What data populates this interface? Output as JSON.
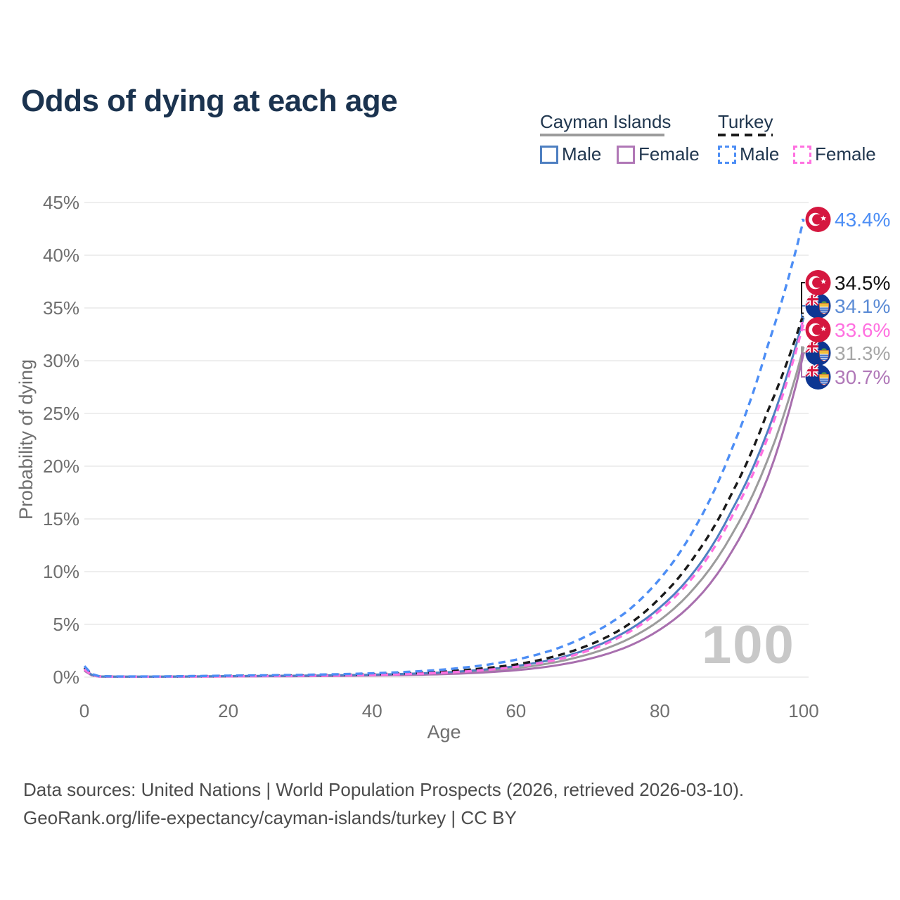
{
  "title": "Odds of dying at each age",
  "legend": {
    "groups": [
      {
        "name": "Cayman Islands",
        "line_style": "solid",
        "underline_color": "#9c9c9c",
        "items": [
          {
            "label": "Male",
            "color": "#4e7fc1",
            "dashed": false
          },
          {
            "label": "Female",
            "color": "#b077b6",
            "dashed": false
          }
        ]
      },
      {
        "name": "Turkey",
        "line_style": "dashed",
        "underline_color": "#1a1a1a",
        "items": [
          {
            "label": "Male",
            "color": "#4d8ef5",
            "dashed": true
          },
          {
            "label": "Female",
            "color": "#ff70e0",
            "dashed": true
          }
        ]
      }
    ]
  },
  "watermark": "100",
  "footer": {
    "line1": "Data sources: United Nations | World Population Prospects (2026, retrieved 2026-03-10).",
    "line2": "GeoRank.org/life-expectancy/cayman-islands/turkey | CC BY"
  },
  "chart_data": {
    "type": "line",
    "title": "Odds of dying at each age",
    "xlabel": "Age",
    "ylabel": "Probability of dying",
    "xlim": [
      0,
      100
    ],
    "ylim": [
      0,
      45
    ],
    "x_ticks": [
      0,
      20,
      40,
      60,
      80,
      100
    ],
    "y_ticks": [
      0,
      5,
      10,
      15,
      20,
      25,
      30,
      35,
      40,
      45
    ],
    "y_tick_suffix": "%",
    "grid": true,
    "legend_position": "top-right",
    "series": [
      {
        "id": "cayman-both",
        "country": "Cayman Islands",
        "sex": "Both",
        "color": "#9c9c9c",
        "dashed": false,
        "end_value": 31.3,
        "end_label": "31.3%",
        "label_color": "#a6a6a6",
        "flag": "cayman",
        "points": [
          [
            0,
            0.7
          ],
          [
            2,
            0.06
          ],
          [
            5,
            0.04
          ],
          [
            10,
            0.04
          ],
          [
            15,
            0.06
          ],
          [
            20,
            0.08
          ],
          [
            25,
            0.1
          ],
          [
            30,
            0.12
          ],
          [
            35,
            0.15
          ],
          [
            40,
            0.19
          ],
          [
            45,
            0.26
          ],
          [
            50,
            0.36
          ],
          [
            55,
            0.55
          ],
          [
            60,
            0.85
          ],
          [
            65,
            1.35
          ],
          [
            70,
            2.15
          ],
          [
            75,
            3.4
          ],
          [
            80,
            5.4
          ],
          [
            85,
            8.6
          ],
          [
            90,
            13.5
          ],
          [
            95,
            20.6
          ],
          [
            100,
            31.3
          ]
        ]
      },
      {
        "id": "cayman-female",
        "country": "Cayman Islands",
        "sex": "Female",
        "color": "#a86fae",
        "dashed": false,
        "end_value": 30.7,
        "end_label": "30.7%",
        "label_color": "#b078b8",
        "flag": "cayman",
        "points": [
          [
            0,
            0.6
          ],
          [
            2,
            0.05
          ],
          [
            5,
            0.03
          ],
          [
            10,
            0.03
          ],
          [
            15,
            0.05
          ],
          [
            20,
            0.06
          ],
          [
            25,
            0.08
          ],
          [
            30,
            0.09
          ],
          [
            35,
            0.11
          ],
          [
            40,
            0.15
          ],
          [
            45,
            0.2
          ],
          [
            50,
            0.28
          ],
          [
            55,
            0.42
          ],
          [
            60,
            0.65
          ],
          [
            65,
            1.05
          ],
          [
            70,
            1.7
          ],
          [
            75,
            2.75
          ],
          [
            80,
            4.5
          ],
          [
            85,
            7.3
          ],
          [
            90,
            11.9
          ],
          [
            95,
            18.9
          ],
          [
            100,
            30.7
          ]
        ]
      },
      {
        "id": "cayman-male",
        "country": "Cayman Islands",
        "sex": "Male",
        "color": "#4e7fc1",
        "dashed": false,
        "end_value": 34.1,
        "end_label": "34.1%",
        "label_color": "#5b8bd5",
        "flag": "cayman",
        "points": [
          [
            0,
            0.8
          ],
          [
            2,
            0.07
          ],
          [
            5,
            0.05
          ],
          [
            10,
            0.05
          ],
          [
            15,
            0.07
          ],
          [
            20,
            0.1
          ],
          [
            25,
            0.12
          ],
          [
            30,
            0.14
          ],
          [
            35,
            0.18
          ],
          [
            40,
            0.23
          ],
          [
            45,
            0.32
          ],
          [
            50,
            0.45
          ],
          [
            55,
            0.68
          ],
          [
            60,
            1.05
          ],
          [
            65,
            1.65
          ],
          [
            70,
            2.65
          ],
          [
            75,
            4.2
          ],
          [
            80,
            6.6
          ],
          [
            85,
            10.2
          ],
          [
            90,
            15.8
          ],
          [
            95,
            23.3
          ],
          [
            100,
            34.1
          ]
        ]
      },
      {
        "id": "turkey-both",
        "country": "Turkey",
        "sex": "Both",
        "color": "#1a1a1a",
        "dashed": true,
        "end_value": 34.5,
        "end_label": "34.5%",
        "label_color": "#111111",
        "flag": "turkey",
        "points": [
          [
            0,
            0.9
          ],
          [
            2,
            0.08
          ],
          [
            5,
            0.05
          ],
          [
            10,
            0.05
          ],
          [
            15,
            0.08
          ],
          [
            20,
            0.11
          ],
          [
            25,
            0.13
          ],
          [
            30,
            0.16
          ],
          [
            35,
            0.2
          ],
          [
            40,
            0.27
          ],
          [
            45,
            0.37
          ],
          [
            50,
            0.52
          ],
          [
            55,
            0.8
          ],
          [
            60,
            1.2
          ],
          [
            65,
            1.9
          ],
          [
            70,
            3.0
          ],
          [
            75,
            4.7
          ],
          [
            80,
            7.5
          ],
          [
            85,
            11.6
          ],
          [
            90,
            17.4
          ],
          [
            95,
            25.2
          ],
          [
            100,
            34.5
          ]
        ]
      },
      {
        "id": "turkey-female",
        "country": "Turkey",
        "sex": "Female",
        "color": "#ff70e0",
        "dashed": true,
        "end_value": 33.6,
        "end_label": "33.6%",
        "label_color": "#ff70e0",
        "flag": "turkey",
        "points": [
          [
            0,
            0.75
          ],
          [
            2,
            0.06
          ],
          [
            5,
            0.04
          ],
          [
            10,
            0.04
          ],
          [
            15,
            0.06
          ],
          [
            20,
            0.08
          ],
          [
            25,
            0.1
          ],
          [
            30,
            0.12
          ],
          [
            35,
            0.15
          ],
          [
            40,
            0.21
          ],
          [
            45,
            0.29
          ],
          [
            50,
            0.42
          ],
          [
            55,
            0.63
          ],
          [
            60,
            0.97
          ],
          [
            65,
            1.55
          ],
          [
            70,
            2.5
          ],
          [
            75,
            4.0
          ],
          [
            80,
            6.3
          ],
          [
            85,
            9.8
          ],
          [
            90,
            15.2
          ],
          [
            95,
            22.7
          ],
          [
            100,
            33.6
          ]
        ]
      },
      {
        "id": "turkey-male",
        "country": "Turkey",
        "sex": "Male",
        "color": "#4d8ef5",
        "dashed": true,
        "end_value": 43.4,
        "end_label": "43.4%",
        "label_color": "#4d8ef5",
        "flag": "turkey",
        "points": [
          [
            0,
            1.05
          ],
          [
            2,
            0.09
          ],
          [
            5,
            0.06
          ],
          [
            10,
            0.06
          ],
          [
            15,
            0.1
          ],
          [
            20,
            0.14
          ],
          [
            25,
            0.17
          ],
          [
            30,
            0.21
          ],
          [
            35,
            0.27
          ],
          [
            40,
            0.36
          ],
          [
            45,
            0.5
          ],
          [
            50,
            0.72
          ],
          [
            55,
            1.08
          ],
          [
            60,
            1.65
          ],
          [
            65,
            2.55
          ],
          [
            70,
            3.95
          ],
          [
            75,
            6.0
          ],
          [
            80,
            9.3
          ],
          [
            85,
            14.3
          ],
          [
            90,
            21.6
          ],
          [
            95,
            31.4
          ],
          [
            100,
            43.4
          ]
        ]
      }
    ]
  }
}
